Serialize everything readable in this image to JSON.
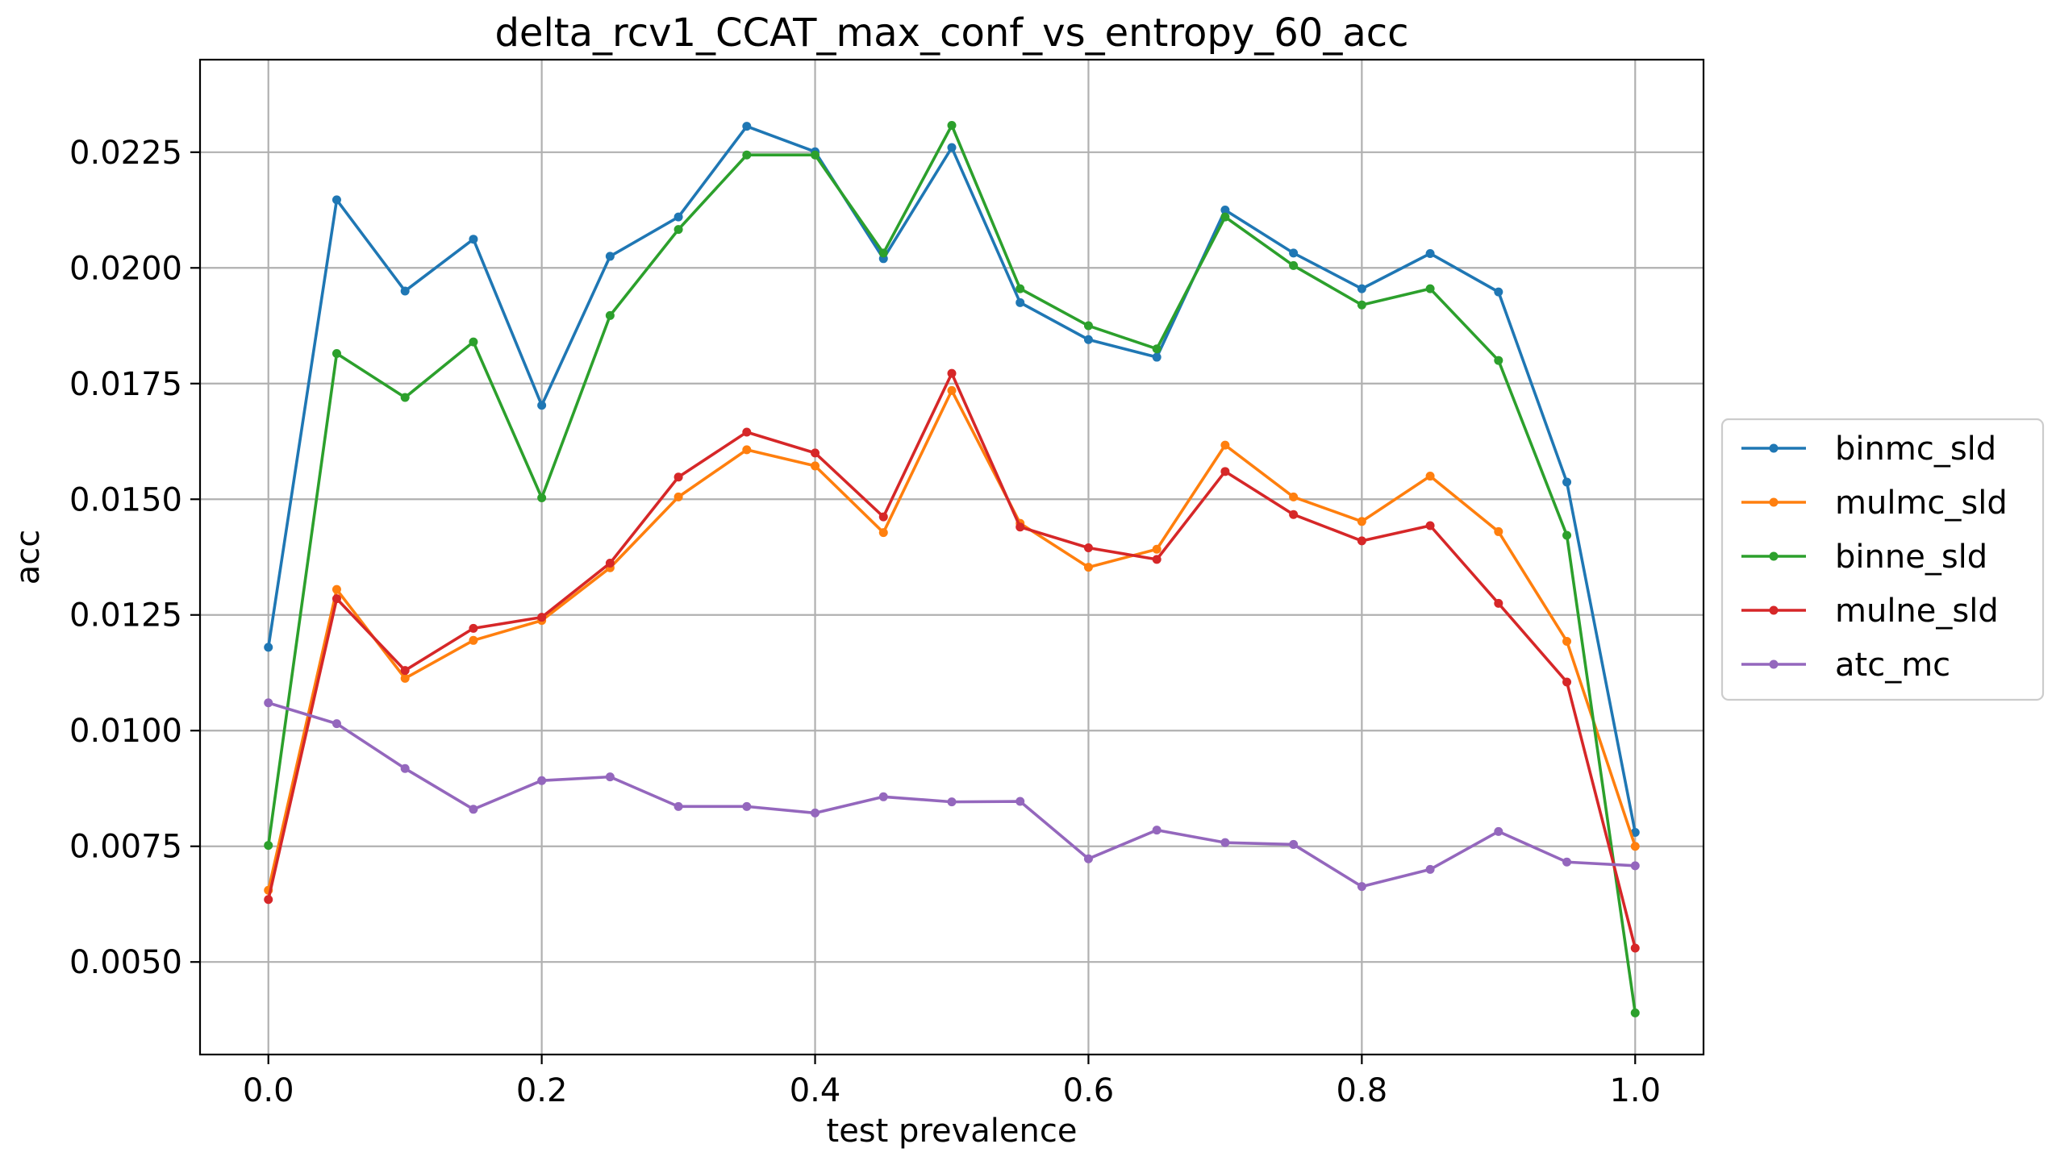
{
  "chart_data": {
    "type": "line",
    "title": "delta_rcv1_CCAT_max_conf_vs_entropy_60_acc",
    "xlabel": "test prevalence",
    "ylabel": "acc",
    "xlim": [
      -0.05,
      1.05
    ],
    "ylim": [
      0.003,
      0.0245
    ],
    "x_ticks": [
      "0.0",
      "0.2",
      "0.4",
      "0.6",
      "0.8",
      "1.0"
    ],
    "y_ticks": [
      "0.0050",
      "0.0075",
      "0.0100",
      "0.0125",
      "0.0150",
      "0.0175",
      "0.0200",
      "0.0225"
    ],
    "grid": true,
    "legend_position": "right, outside plot",
    "x": [
      0.0,
      0.05,
      0.1,
      0.15,
      0.2,
      0.25,
      0.3,
      0.35,
      0.4,
      0.45,
      0.5,
      0.55,
      0.6,
      0.65,
      0.7,
      0.75,
      0.8,
      0.85,
      0.9,
      0.95,
      1.0
    ],
    "series": [
      {
        "name": "binmc_sld",
        "color": "#1f77b4",
        "values": [
          0.0118,
          0.02147,
          0.0195,
          0.02062,
          0.01703,
          0.02025,
          0.0211,
          0.02306,
          0.02251,
          0.0202,
          0.0226,
          0.01925,
          0.01845,
          0.01807,
          0.02125,
          0.02032,
          0.01955,
          0.02031,
          0.01948,
          0.01537,
          0.0078
        ]
      },
      {
        "name": "mulmc_sld",
        "color": "#ff7f0e",
        "values": [
          0.00655,
          0.01305,
          0.01113,
          0.01195,
          0.01238,
          0.01352,
          0.01505,
          0.01607,
          0.01572,
          0.01428,
          0.01735,
          0.01448,
          0.01353,
          0.01392,
          0.01617,
          0.01505,
          0.01452,
          0.0155,
          0.0143,
          0.01193,
          0.0075
        ]
      },
      {
        "name": "binne_sld",
        "color": "#2ca02c",
        "values": [
          0.00752,
          0.01815,
          0.0172,
          0.0184,
          0.01503,
          0.01897,
          0.02083,
          0.02244,
          0.02244,
          0.02032,
          0.02308,
          0.01955,
          0.01875,
          0.01825,
          0.0211,
          0.02005,
          0.0192,
          0.01955,
          0.018,
          0.01422,
          0.0039
        ]
      },
      {
        "name": "mulne_sld",
        "color": "#d62728",
        "values": [
          0.00635,
          0.01285,
          0.0113,
          0.01221,
          0.01245,
          0.01362,
          0.01548,
          0.01645,
          0.016,
          0.01462,
          0.01772,
          0.0144,
          0.01395,
          0.0137,
          0.0156,
          0.01467,
          0.0141,
          0.01443,
          0.01275,
          0.01105,
          0.0053
        ]
      },
      {
        "name": "atc_mc",
        "color": "#9467bd",
        "values": [
          0.0106,
          0.01015,
          0.00918,
          0.0083,
          0.00892,
          0.009,
          0.00836,
          0.00836,
          0.00822,
          0.00857,
          0.00846,
          0.00847,
          0.00723,
          0.00785,
          0.00758,
          0.00754,
          0.00663,
          0.007,
          0.00782,
          0.00716,
          0.00708
        ]
      }
    ]
  }
}
